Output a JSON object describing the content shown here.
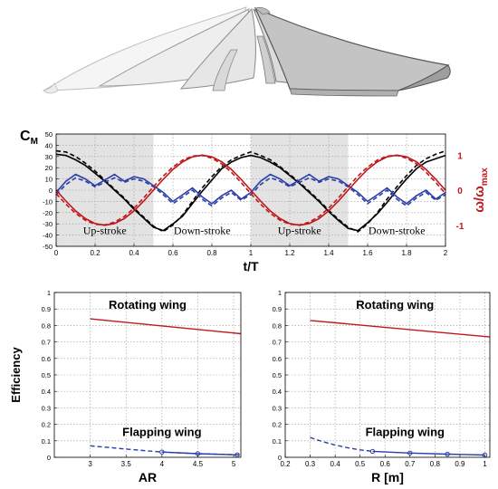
{
  "colors": {
    "black": "#000000",
    "blue": "#2b3fa8",
    "red": "#c0171b",
    "shade": "#e3e3e3",
    "grid": "#9a9a9a",
    "wing_fill": "#d8d8d8",
    "wing_stroke": "#555555"
  },
  "wing_illustration": {
    "description": "flapping-to-rotating wing sequence",
    "icon": "wing-sequence-icon"
  },
  "chart_data": [
    {
      "id": "moment",
      "type": "line",
      "ylabel_main": "C",
      "ylabel_sub": "M",
      "y2label_main": "ω/ω",
      "y2label_sub": "max",
      "xlabel": "t/T",
      "xlim": [
        0,
        2
      ],
      "ylim": [
        -50,
        50
      ],
      "y2lim": [
        -1.6,
        1.6
      ],
      "xticks": [
        0,
        0.2,
        0.4,
        0.6,
        0.8,
        1,
        1.2,
        1.4,
        1.6,
        1.8,
        2
      ],
      "xtick_labels": [
        "0",
        "0.2",
        "0.4",
        "0.6",
        "0.8",
        "1",
        "1.2",
        "1.4",
        "1.6",
        "1.8",
        "2"
      ],
      "yticks": [
        -50,
        -40,
        -30,
        -20,
        -10,
        0,
        10,
        20,
        30,
        40,
        50
      ],
      "ytick_labels": [
        "-50",
        "-40",
        "-30",
        "-20",
        "-10",
        "0",
        "10",
        "20",
        "30",
        "40",
        "50"
      ],
      "y2ticks": [
        -1,
        0,
        1
      ],
      "y2tick_labels": [
        "-1",
        "0",
        "1"
      ],
      "shaded_regions": [
        [
          0,
          0.5
        ],
        [
          1,
          1.5
        ]
      ],
      "phase_labels": [
        {
          "text": "Up-stroke",
          "x": 0.25
        },
        {
          "text": "Down-stroke",
          "x": 0.75
        },
        {
          "text": "Up-stroke",
          "x": 1.25
        },
        {
          "text": "Down-stroke",
          "x": 1.75
        }
      ],
      "phase_label_y": -39,
      "grid": true,
      "series": [
        {
          "color": "black",
          "dash": "",
          "axis": "left",
          "x": [
            0,
            0.05,
            0.1,
            0.15,
            0.2,
            0.25,
            0.3,
            0.35,
            0.4,
            0.45,
            0.5,
            0.55,
            0.6,
            0.65,
            0.7,
            0.75,
            0.8,
            0.85,
            0.9,
            0.95,
            1.0,
            1.05,
            1.1,
            1.15,
            1.2,
            1.25,
            1.3,
            1.35,
            1.4,
            1.45,
            1.5,
            1.55,
            1.6,
            1.65,
            1.7,
            1.75,
            1.8,
            1.85,
            1.9,
            1.95,
            2.0
          ],
          "y": [
            32,
            31,
            27,
            22,
            15,
            8,
            0,
            -8,
            -17,
            -25,
            -33,
            -36,
            -30,
            -23,
            -12,
            -1,
            9,
            19,
            25,
            29,
            31,
            29,
            25,
            20,
            13,
            6,
            -2,
            -10,
            -19,
            -27,
            -34,
            -36,
            -29,
            -21,
            -11,
            0,
            10,
            19,
            25,
            28,
            31
          ]
        },
        {
          "color": "black",
          "dash": "5,3",
          "axis": "left",
          "x": [
            0,
            0.05,
            0.1,
            0.15,
            0.2,
            0.25,
            0.3,
            0.35,
            0.4,
            0.45,
            0.5,
            0.55,
            0.6,
            0.65,
            0.7,
            0.75,
            0.8,
            0.85,
            0.9,
            0.95,
            1.0,
            1.05,
            1.1,
            1.15,
            1.2,
            1.25,
            1.3,
            1.35,
            1.4,
            1.45,
            1.5,
            1.55,
            1.6,
            1.65,
            1.7,
            1.75,
            1.8,
            1.85,
            1.9,
            1.95,
            2.0
          ],
          "y": [
            35,
            34,
            30,
            24,
            17,
            9,
            1,
            -7,
            -16,
            -24,
            -32,
            -37,
            -31,
            -22,
            -10,
            2,
            12,
            21,
            27,
            31,
            34,
            31,
            27,
            21,
            14,
            7,
            -1,
            -9,
            -18,
            -26,
            -33,
            -37,
            -30,
            -20,
            -8,
            3,
            13,
            22,
            28,
            32,
            35
          ]
        },
        {
          "color": "blue",
          "dash": "",
          "axis": "left",
          "x": [
            0,
            0.05,
            0.1,
            0.15,
            0.2,
            0.25,
            0.3,
            0.35,
            0.4,
            0.45,
            0.5,
            0.55,
            0.6,
            0.65,
            0.7,
            0.75,
            0.8,
            0.85,
            0.9,
            0.95,
            1.0,
            1.05,
            1.1,
            1.15,
            1.2,
            1.25,
            1.3,
            1.35,
            1.4,
            1.45,
            1.5,
            1.55,
            1.6,
            1.65,
            1.7,
            1.75,
            1.8,
            1.85,
            1.9,
            1.95,
            2.0
          ],
          "y": [
            -2,
            8,
            14,
            10,
            4,
            9,
            14,
            8,
            12,
            10,
            4,
            -2,
            -10,
            -4,
            2,
            -6,
            -12,
            -5,
            0,
            -8,
            -2,
            8,
            14,
            10,
            4,
            9,
            14,
            8,
            12,
            10,
            4,
            -2,
            -10,
            -4,
            2,
            -6,
            -12,
            -5,
            0,
            -8,
            -2
          ]
        },
        {
          "color": "blue",
          "dash": "5,3",
          "axis": "left",
          "x": [
            0,
            0.05,
            0.1,
            0.15,
            0.2,
            0.25,
            0.3,
            0.35,
            0.4,
            0.45,
            0.5,
            0.55,
            0.6,
            0.65,
            0.7,
            0.75,
            0.8,
            0.85,
            0.9,
            0.95,
            1.0,
            1.05,
            1.1,
            1.15,
            1.2,
            1.25,
            1.3,
            1.35,
            1.4,
            1.45,
            1.5,
            1.55,
            1.6,
            1.65,
            1.7,
            1.75,
            1.8,
            1.85,
            1.9,
            1.95,
            2.0
          ],
          "y": [
            -4,
            5,
            11,
            8,
            3,
            7,
            11,
            7,
            10,
            8,
            3,
            -4,
            -12,
            -6,
            0,
            -8,
            -14,
            -7,
            -2,
            -9,
            -4,
            5,
            11,
            8,
            3,
            7,
            11,
            7,
            10,
            8,
            3,
            -4,
            -12,
            -6,
            0,
            -8,
            -14,
            -7,
            -2,
            -9,
            -4
          ]
        },
        {
          "color": "red",
          "dash": "",
          "axis": "right",
          "x": [
            0,
            0.05,
            0.1,
            0.15,
            0.2,
            0.25,
            0.3,
            0.35,
            0.4,
            0.45,
            0.5,
            0.55,
            0.6,
            0.65,
            0.7,
            0.75,
            0.8,
            0.85,
            0.9,
            0.95,
            1.0,
            1.05,
            1.1,
            1.15,
            1.2,
            1.25,
            1.3,
            1.35,
            1.4,
            1.45,
            1.5,
            1.55,
            1.6,
            1.65,
            1.7,
            1.75,
            1.8,
            1.85,
            1.9,
            1.95,
            2.0
          ],
          "y": [
            0,
            -0.31,
            -0.59,
            -0.81,
            -0.95,
            -1.0,
            -0.95,
            -0.81,
            -0.59,
            -0.31,
            0,
            0.31,
            0.59,
            0.81,
            0.95,
            1.0,
            0.95,
            0.81,
            0.59,
            0.31,
            0,
            -0.31,
            -0.59,
            -0.81,
            -0.95,
            -1.0,
            -0.95,
            -0.81,
            -0.59,
            -0.31,
            0,
            0.31,
            0.59,
            0.81,
            0.95,
            1.0,
            0.95,
            0.81,
            0.59,
            0.31,
            0
          ]
        },
        {
          "color": "red",
          "dash": "5,3",
          "axis": "right",
          "x": [
            0,
            0.05,
            0.1,
            0.15,
            0.2,
            0.25,
            0.3,
            0.35,
            0.4,
            0.45,
            0.5,
            0.55,
            0.6,
            0.65,
            0.7,
            0.75,
            0.8,
            0.85,
            0.9,
            0.95,
            1.0,
            1.05,
            1.1,
            1.15,
            1.2,
            1.25,
            1.3,
            1.35,
            1.4,
            1.45,
            1.5,
            1.55,
            1.6,
            1.65,
            1.7,
            1.75,
            1.8,
            1.85,
            1.9,
            1.95,
            2.0
          ],
          "y": [
            -0.1,
            -0.4,
            -0.66,
            -0.86,
            -0.97,
            -0.99,
            -0.91,
            -0.75,
            -0.51,
            -0.22,
            0.1,
            0.4,
            0.66,
            0.86,
            0.97,
            0.99,
            0.91,
            0.75,
            0.51,
            0.22,
            -0.1,
            -0.4,
            -0.66,
            -0.86,
            -0.97,
            -0.99,
            -0.91,
            -0.75,
            -0.51,
            -0.22,
            0.1,
            0.4,
            0.66,
            0.86,
            0.97,
            0.99,
            0.91,
            0.75,
            0.51,
            0.22,
            -0.1
          ]
        }
      ]
    },
    {
      "id": "eff-ar",
      "type": "line",
      "ylabel": "Efficiency",
      "xlabel": "AR",
      "xlim": [
        2.5,
        5.1
      ],
      "ylim": [
        0,
        1
      ],
      "xticks": [
        3,
        3.5,
        4,
        4.5,
        5
      ],
      "xtick_labels": [
        "3",
        "3.5",
        "4",
        "4.5",
        "5"
      ],
      "yticks": [
        0,
        0.1,
        0.2,
        0.3,
        0.4,
        0.5,
        0.6,
        0.7,
        0.8,
        0.9,
        1
      ],
      "ytick_labels": [
        "0",
        "0.1",
        "0.2",
        "0.3",
        "0.4",
        "0.5",
        "0.6",
        "0.7",
        "0.8",
        "0.9",
        "1"
      ],
      "grid": true,
      "annotations": [
        {
          "text": "Rotating wing",
          "x": 3.8,
          "y": 0.9
        },
        {
          "text": "Flapping wing",
          "x": 4.0,
          "y": 0.13
        }
      ],
      "series": [
        {
          "color": "red",
          "dash": "",
          "markers": false,
          "x": [
            3,
            5.1
          ],
          "y": [
            0.84,
            0.75
          ]
        },
        {
          "color": "blue",
          "dash": "5,3",
          "markers": false,
          "x": [
            3,
            3.5,
            4,
            4.5,
            5.1
          ],
          "y": [
            0.07,
            0.05,
            0.032,
            0.022,
            0.015
          ]
        },
        {
          "color": "blue",
          "dash": "",
          "markers": true,
          "x": [
            4,
            4.5,
            5.05
          ],
          "y": [
            0.032,
            0.022,
            0.015
          ]
        }
      ]
    },
    {
      "id": "eff-r",
      "type": "line",
      "ylabel": "",
      "xlabel": "R [m]",
      "xlim": [
        0.2,
        1.02
      ],
      "ylim": [
        0,
        1
      ],
      "xticks": [
        0.2,
        0.3,
        0.4,
        0.5,
        0.6,
        0.7,
        0.8,
        0.9,
        1
      ],
      "xtick_labels": [
        "0.2",
        "0.3",
        "0.4",
        "0.5",
        "0.6",
        "0.7",
        "0.8",
        "0.9",
        "1"
      ],
      "yticks": [
        0,
        0.1,
        0.2,
        0.3,
        0.4,
        0.5,
        0.6,
        0.7,
        0.8,
        0.9,
        1
      ],
      "ytick_labels": [
        "0",
        "0.1",
        "0.2",
        "0.3",
        "0.4",
        "0.5",
        "0.6",
        "0.7",
        "0.8",
        "0.9",
        "1"
      ],
      "grid": true,
      "annotations": [
        {
          "text": "Rotating wing",
          "x": 0.64,
          "y": 0.9
        },
        {
          "text": "Flapping wing",
          "x": 0.68,
          "y": 0.13
        }
      ],
      "series": [
        {
          "color": "red",
          "dash": "",
          "markers": false,
          "x": [
            0.3,
            1.02
          ],
          "y": [
            0.83,
            0.73
          ]
        },
        {
          "color": "blue",
          "dash": "5,3",
          "markers": false,
          "x": [
            0.3,
            0.35,
            0.4,
            0.45,
            0.5,
            0.55
          ],
          "y": [
            0.12,
            0.095,
            0.075,
            0.058,
            0.045,
            0.036
          ]
        },
        {
          "color": "blue",
          "dash": "",
          "markers": true,
          "x": [
            0.55,
            0.7,
            0.85,
            1.0
          ],
          "y": [
            0.036,
            0.026,
            0.019,
            0.014
          ]
        }
      ]
    }
  ]
}
